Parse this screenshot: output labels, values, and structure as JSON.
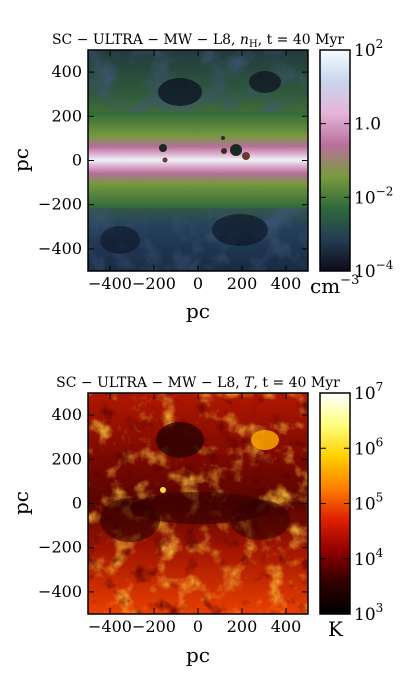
{
  "chart_data": [
    {
      "type": "heatmap",
      "title_parts": {
        "prefix": "SC − ULTRA − MW − L8, ",
        "var": "n",
        "sub": "H",
        "suffix": ", t = 40 Myr"
      },
      "xlabel": "pc",
      "ylabel": "pc",
      "x_ticks": [
        "−400",
        "−200",
        "0",
        "200",
        "400"
      ],
      "y_ticks": [
        "400",
        "200",
        "0",
        "−200",
        "−400"
      ],
      "xlim": [
        -500,
        500
      ],
      "ylim": [
        -500,
        500
      ],
      "colorbar": {
        "scale": "log",
        "range": [
          0.0001,
          100
        ],
        "tick_labels": [
          {
            "base": "10",
            "exp": "2"
          },
          {
            "base": "1.0",
            "exp": ""
          },
          {
            "base": "10",
            "exp": "−2"
          },
          {
            "base": "10",
            "exp": "−4"
          }
        ],
        "unit_base": "cm",
        "unit_exp": "−3",
        "colors": [
          "#f4fbff",
          "#c8d6ee",
          "#e8b4da",
          "#b9709c",
          "#7a9a3e",
          "#2f6a3a",
          "#243c52",
          "#0d0a1a"
        ]
      }
    },
    {
      "type": "heatmap",
      "title_parts": {
        "prefix": "SC − ULTRA − MW − L8, ",
        "var": "T",
        "sub": "",
        "suffix": ", t = 40 Myr"
      },
      "xlabel": "pc",
      "ylabel": "pc",
      "x_ticks": [
        "−400",
        "−200",
        "0",
        "200",
        "400"
      ],
      "y_ticks": [
        "400",
        "200",
        "0",
        "−200",
        "−400"
      ],
      "xlim": [
        -500,
        500
      ],
      "ylim": [
        -500,
        500
      ],
      "colorbar": {
        "scale": "log",
        "range": [
          1000,
          10000000
        ],
        "tick_labels": [
          {
            "base": "10",
            "exp": "7"
          },
          {
            "base": "10",
            "exp": "6"
          },
          {
            "base": "10",
            "exp": "5"
          },
          {
            "base": "10",
            "exp": "4"
          },
          {
            "base": "10",
            "exp": "3"
          }
        ],
        "unit_base": "K",
        "unit_exp": "",
        "colors": [
          "#ffffff",
          "#ffff80",
          "#ffd000",
          "#ff8000",
          "#e02000",
          "#900000",
          "#300000",
          "#000000"
        ]
      }
    }
  ]
}
